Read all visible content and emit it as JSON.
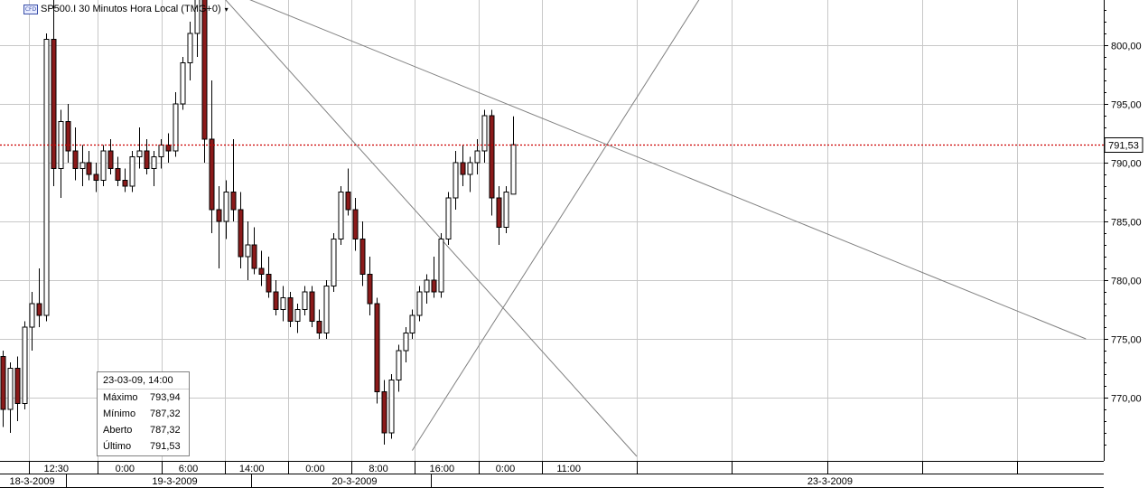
{
  "title": {
    "badge": "CFD",
    "text": "SP500.I 30 Minutos Hora Local (TMG+0)",
    "caret": "▾"
  },
  "info_box": {
    "header": "23-03-09, 14:00",
    "rows": [
      {
        "label": "Máximo",
        "value": "793,94"
      },
      {
        "label": "Mínimo",
        "value": "787,32"
      },
      {
        "label": "Aberto",
        "value": "787,32"
      },
      {
        "label": "Último",
        "value": "791,53"
      }
    ]
  },
  "current_price": {
    "label": "791,53",
    "value": 791.53
  },
  "colors": {
    "bull_fill": "#ffffff",
    "bear_fill": "#8b1a1a",
    "candle_outline": "#000000",
    "wick": "#000000",
    "grid": "#c8c8c8",
    "trendline": "#808080",
    "price_line": "#cc0000",
    "price_label_bg": "#ffffff"
  },
  "chart_data": {
    "type": "candlestick",
    "ylim": [
      765,
      806
    ],
    "y_ticks": [
      {
        "value": 805,
        "label": "805,00"
      },
      {
        "value": 800,
        "label": "800,00"
      },
      {
        "value": 795,
        "label": "795,00"
      },
      {
        "value": 790,
        "label": "790,00"
      },
      {
        "value": 785,
        "label": "785,00"
      },
      {
        "value": 780,
        "label": "780,00"
      },
      {
        "value": 775,
        "label": "775,00"
      },
      {
        "value": 770,
        "label": "770,00"
      }
    ],
    "x_axis_bars": 209,
    "x_time_ticks": [
      {
        "bar": 5,
        "label": "12:30"
      },
      {
        "bar": 18,
        "label": "0:00"
      },
      {
        "bar": 30,
        "label": "6:00"
      },
      {
        "bar": 42,
        "label": "14:00"
      },
      {
        "bar": 54,
        "label": "0:00"
      },
      {
        "bar": 66,
        "label": "8:00"
      },
      {
        "bar": 78,
        "label": "16:00"
      },
      {
        "bar": 90,
        "label": "0:00"
      },
      {
        "bar": 102,
        "label": "11:00"
      }
    ],
    "x_grid_bars": [
      5,
      18,
      30,
      42,
      54,
      66,
      78,
      90,
      102,
      120,
      138,
      156,
      174,
      192
    ],
    "x_date_labels": [
      {
        "bar": 3,
        "label": "18-3-2009"
      },
      {
        "bar": 30,
        "label": "19-3-2009"
      },
      {
        "bar": 64,
        "label": "20-3-2009"
      },
      {
        "bar": 154,
        "label": "23-3-2009"
      }
    ],
    "x_date_dividers": [
      12,
      47,
      81
    ],
    "candles": [
      [
        773.5,
        774.0,
        767.5,
        769.0
      ],
      [
        769.0,
        773.0,
        767.0,
        772.5
      ],
      [
        772.5,
        773.5,
        768.0,
        769.5
      ],
      [
        769.5,
        776.5,
        769.0,
        776.0
      ],
      [
        776.0,
        779.0,
        774.0,
        778.0
      ],
      [
        778.0,
        781.0,
        776.0,
        777.0
      ],
      [
        777.0,
        801.0,
        776.5,
        800.5
      ],
      [
        800.5,
        804.0,
        788.0,
        789.5
      ],
      [
        789.5,
        794.5,
        787.0,
        793.5
      ],
      [
        793.5,
        795.0,
        790.0,
        791.0
      ],
      [
        791.0,
        793.0,
        788.5,
        789.5
      ],
      [
        789.5,
        791.5,
        788.0,
        790.0
      ],
      [
        790.0,
        791.0,
        788.5,
        789.0
      ],
      [
        789.0,
        790.0,
        787.5,
        788.5
      ],
      [
        788.5,
        791.5,
        788.0,
        791.0
      ],
      [
        791.0,
        792.0,
        789.0,
        789.5
      ],
      [
        789.5,
        790.5,
        788.0,
        788.5
      ],
      [
        788.5,
        789.5,
        787.5,
        788.0
      ],
      [
        788.0,
        791.0,
        787.5,
        790.5
      ],
      [
        790.5,
        793.0,
        789.5,
        791.0
      ],
      [
        791.0,
        792.0,
        789.0,
        789.5
      ],
      [
        789.5,
        791.0,
        788.0,
        790.5
      ],
      [
        790.5,
        792.0,
        789.5,
        791.5
      ],
      [
        791.5,
        792.5,
        790.0,
        791.0
      ],
      [
        791.0,
        796.0,
        790.5,
        795.0
      ],
      [
        795.0,
        799.0,
        794.5,
        798.5
      ],
      [
        798.5,
        802.0,
        797.0,
        801.0
      ],
      [
        801.0,
        805.5,
        799.0,
        804.5
      ],
      [
        804.5,
        805.5,
        790.0,
        792.0
      ],
      [
        792.0,
        797.0,
        784.0,
        786.0
      ],
      [
        786.0,
        788.0,
        781.0,
        785.0
      ],
      [
        785.0,
        788.5,
        783.5,
        787.5
      ],
      [
        787.5,
        792.0,
        785.0,
        786.0
      ],
      [
        786.0,
        787.5,
        781.0,
        782.0
      ],
      [
        782.0,
        785.0,
        780.0,
        783.0
      ],
      [
        783.0,
        784.5,
        780.5,
        781.0
      ],
      [
        781.0,
        782.5,
        779.5,
        780.5
      ],
      [
        780.5,
        782.0,
        778.5,
        779.0
      ],
      [
        779.0,
        780.0,
        777.0,
        777.5
      ],
      [
        777.5,
        779.5,
        776.5,
        778.5
      ],
      [
        778.5,
        779.0,
        776.0,
        776.5
      ],
      [
        776.5,
        778.0,
        775.5,
        777.5
      ],
      [
        777.5,
        779.5,
        777.0,
        779.0
      ],
      [
        779.0,
        779.5,
        776.0,
        776.5
      ],
      [
        776.5,
        777.5,
        775.0,
        775.5
      ],
      [
        775.5,
        780.0,
        775.0,
        779.5
      ],
      [
        779.5,
        784.0,
        779.0,
        783.5
      ],
      [
        783.5,
        788.0,
        783.0,
        787.5
      ],
      [
        787.5,
        789.5,
        785.5,
        786.0
      ],
      [
        786.0,
        787.0,
        782.5,
        783.5
      ],
      [
        783.5,
        785.0,
        779.5,
        780.5
      ],
      [
        780.5,
        782.0,
        777.0,
        778.0
      ],
      [
        778.0,
        778.5,
        769.5,
        770.5
      ],
      [
        770.5,
        771.5,
        766.0,
        767.0
      ],
      [
        767.0,
        772.0,
        766.5,
        771.5
      ],
      [
        771.5,
        774.5,
        770.5,
        774.0
      ],
      [
        774.0,
        776.0,
        773.0,
        775.5
      ],
      [
        775.5,
        777.5,
        775.0,
        777.0
      ],
      [
        777.0,
        779.5,
        776.5,
        779.0
      ],
      [
        779.0,
        780.5,
        778.0,
        780.0
      ],
      [
        780.0,
        782.0,
        778.5,
        779.0
      ],
      [
        779.0,
        784.0,
        778.5,
        783.5
      ],
      [
        783.5,
        787.5,
        783.0,
        787.0
      ],
      [
        787.0,
        791.0,
        786.0,
        790.0
      ],
      [
        790.0,
        791.5,
        788.0,
        789.0
      ],
      [
        789.0,
        790.5,
        787.5,
        790.0
      ],
      [
        790.0,
        792.0,
        789.0,
        791.0
      ],
      [
        791.0,
        794.5,
        790.0,
        794.0
      ],
      [
        794.0,
        794.5,
        785.5,
        787.0
      ],
      [
        787.0,
        788.0,
        783.0,
        784.5
      ],
      [
        784.5,
        788.0,
        784.0,
        787.5
      ],
      [
        787.32,
        793.94,
        787.32,
        791.53
      ]
    ],
    "trendlines": [
      {
        "from": {
          "bar": 39.5,
          "price": 805.2
        },
        "to": {
          "bar": 205,
          "price": 775.0
        }
      },
      {
        "from": {
          "bar": 39.5,
          "price": 805.2
        },
        "to": {
          "bar": 120,
          "price": 765.0
        }
      },
      {
        "from": {
          "bar": 77.5,
          "price": 765.5
        },
        "to": {
          "bar": 135.5,
          "price": 806.5
        }
      }
    ]
  }
}
